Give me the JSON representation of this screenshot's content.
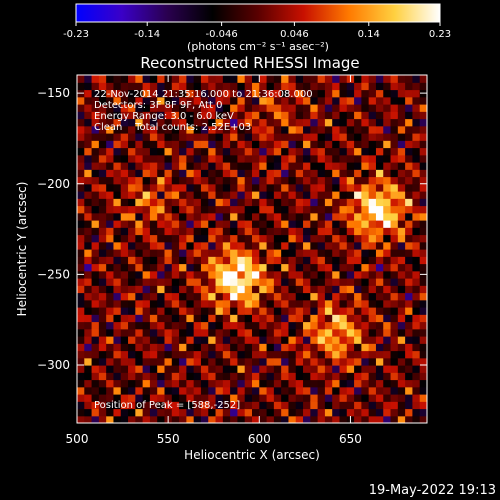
{
  "colorbar": {
    "tick_labels": [
      "-0.23",
      "-0.14",
      "-0.046",
      "0.046",
      "0.14",
      "0.23"
    ],
    "units": "(photons cm⁻² s⁻¹ asec⁻²)",
    "min": -0.23,
    "max": 0.23,
    "colormap": [
      "#0000ff",
      "#3a00c8",
      "#2a0050",
      "#000000",
      "#5a0000",
      "#c81000",
      "#ff7a00",
      "#ffd040",
      "#ffffff"
    ]
  },
  "title": "Reconstructed RHESSI Image",
  "info_lines": [
    "22-Nov-2014 21:35:16.000 to 21:36:08.000",
    "Detectors: 3F 8F 9F, Att 0",
    "Energy Range: 3.0 - 6.0 keV",
    "Clean    Total counts: 2.52E+03"
  ],
  "peak_text": "Position of Peak = [588,-252]",
  "timestamp": "19-May-2022 19:13",
  "chart_data": {
    "type": "heatmap",
    "title": "Reconstructed RHESSI Image",
    "xlabel": "Heliocentric X (arcsec)",
    "ylabel": "Heliocentric Y (arcsec)",
    "xlim": [
      500,
      692
    ],
    "ylim": [
      -332,
      -140
    ],
    "x_ticks": [
      500,
      550,
      600,
      650
    ],
    "y_ticks": [
      -150,
      -200,
      -250,
      -300
    ],
    "peak": [
      588,
      -252
    ],
    "sources": [
      {
        "x": 588,
        "y": -252,
        "value": 0.23
      },
      {
        "x": 665,
        "y": -214,
        "value": 0.2
      },
      {
        "x": 642,
        "y": -282,
        "value": 0.14
      },
      {
        "x": 540,
        "y": -210,
        "value": 0.08
      },
      {
        "x": 608,
        "y": -160,
        "value": 0.06
      }
    ],
    "value_range": [
      -0.23,
      0.23
    ]
  }
}
